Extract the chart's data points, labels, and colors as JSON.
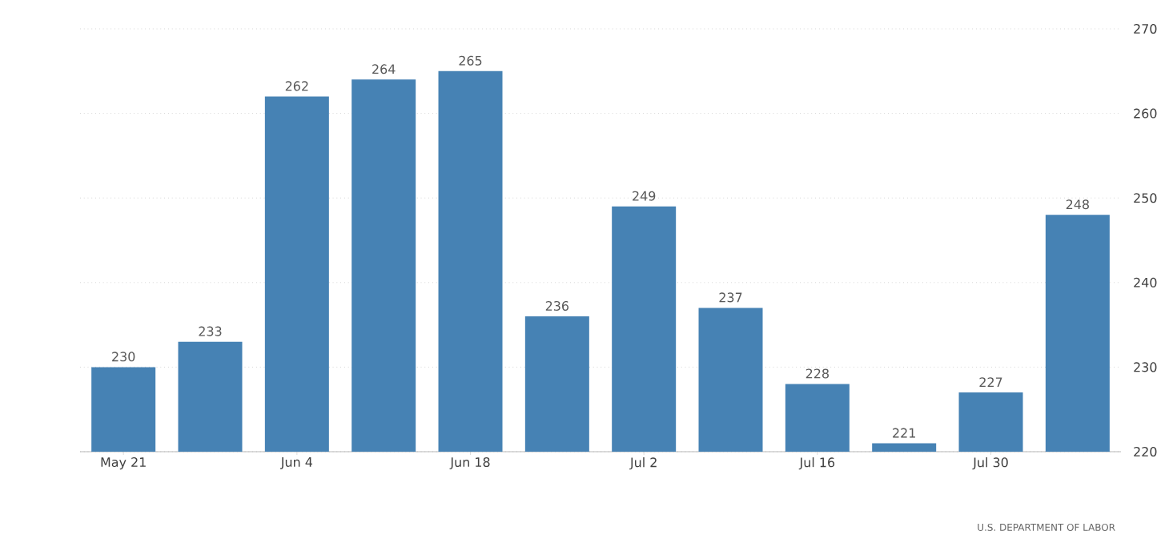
{
  "chart_data": {
    "type": "bar",
    "categories": [
      "May 21",
      null,
      "Jun 4",
      null,
      "Jun 18",
      null,
      "Jul 2",
      null,
      "Jul 16",
      null,
      "Jul 30",
      null
    ],
    "values": [
      230,
      233,
      262,
      264,
      265,
      236,
      249,
      237,
      228,
      221,
      227,
      248
    ],
    "color": "#4682b4",
    "ylim": [
      220,
      270
    ],
    "yticks": [
      220,
      230,
      240,
      250,
      260,
      270
    ],
    "grid": "y",
    "data_labels": true,
    "annotations": [
      "U.S. DEPARTMENT OF LABOR"
    ]
  }
}
